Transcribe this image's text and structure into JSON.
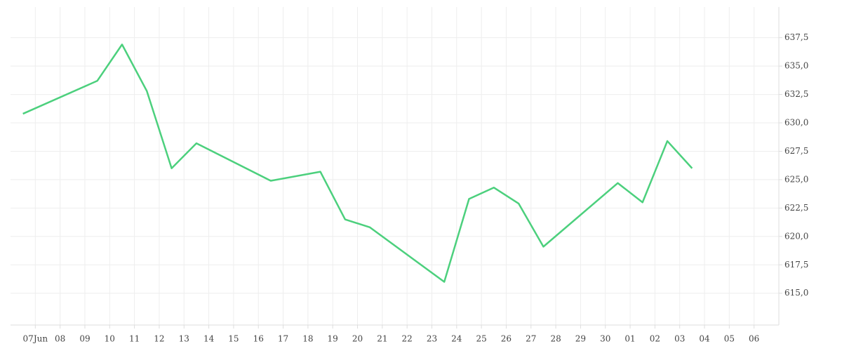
{
  "chart_data": {
    "type": "line",
    "color": "#4cd07d",
    "grid": true,
    "xlim": [
      -1,
      30
    ],
    "xticks": [
      {
        "value": 0,
        "label": "07Jun"
      },
      {
        "value": 1,
        "label": "08"
      },
      {
        "value": 2,
        "label": "09"
      },
      {
        "value": 3,
        "label": "10"
      },
      {
        "value": 4,
        "label": "11"
      },
      {
        "value": 5,
        "label": "12"
      },
      {
        "value": 6,
        "label": "13"
      },
      {
        "value": 7,
        "label": "14"
      },
      {
        "value": 8,
        "label": "15"
      },
      {
        "value": 9,
        "label": "16"
      },
      {
        "value": 10,
        "label": "17"
      },
      {
        "value": 11,
        "label": "18"
      },
      {
        "value": 12,
        "label": "19"
      },
      {
        "value": 13,
        "label": "20"
      },
      {
        "value": 14,
        "label": "21"
      },
      {
        "value": 15,
        "label": "22"
      },
      {
        "value": 16,
        "label": "23"
      },
      {
        "value": 17,
        "label": "24"
      },
      {
        "value": 18,
        "label": "25"
      },
      {
        "value": 19,
        "label": "26"
      },
      {
        "value": 20,
        "label": "27"
      },
      {
        "value": 21,
        "label": "28"
      },
      {
        "value": 22,
        "label": "29"
      },
      {
        "value": 23,
        "label": "30"
      },
      {
        "value": 24,
        "label": "01"
      },
      {
        "value": 25,
        "label": "02"
      },
      {
        "value": 26,
        "label": "03"
      },
      {
        "value": 27,
        "label": "04"
      },
      {
        "value": 28,
        "label": "05"
      },
      {
        "value": 29,
        "label": "06"
      }
    ],
    "ylim": [
      612.2,
      640.2
    ],
    "yticks": [
      {
        "value": 615,
        "label": "615,0"
      },
      {
        "value": 617.5,
        "label": "617,5"
      },
      {
        "value": 620,
        "label": "620,0"
      },
      {
        "value": 622.5,
        "label": "622,5"
      },
      {
        "value": 625,
        "label": "625,0"
      },
      {
        "value": 627.5,
        "label": "627,5"
      },
      {
        "value": 630,
        "label": "630,0"
      },
      {
        "value": 632.5,
        "label": "632,5"
      },
      {
        "value": 635,
        "label": "635,0"
      },
      {
        "value": 637.5,
        "label": "637,5"
      }
    ],
    "x": [
      -0.5,
      2.5,
      3.5,
      4.5,
      5.5,
      6.5,
      9.5,
      11.5,
      12.5,
      13.5,
      16.5,
      17.5,
      18.5,
      19.5,
      20.5,
      23.5,
      24.5,
      25.5,
      26.5
    ],
    "values": [
      630.8,
      633.7,
      636.9,
      632.8,
      626.0,
      628.2,
      624.9,
      625.7,
      621.5,
      620.8,
      616.0,
      623.3,
      624.3,
      622.9,
      619.1,
      624.7,
      623.0,
      628.4,
      626.0
    ]
  }
}
